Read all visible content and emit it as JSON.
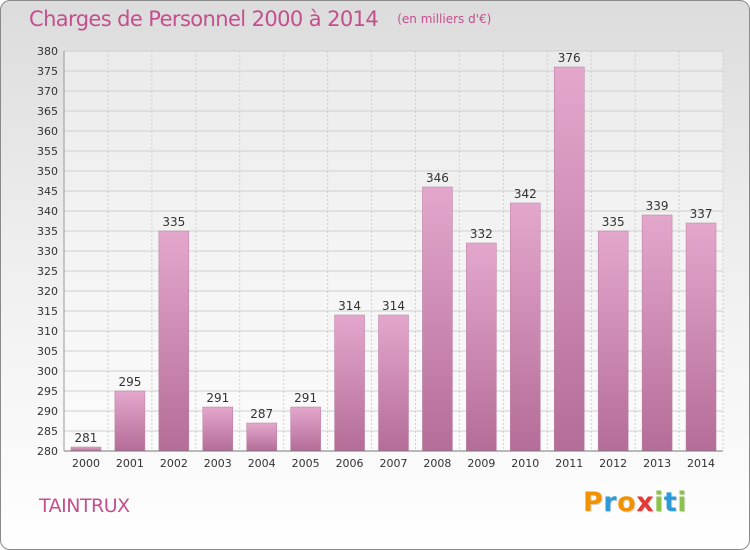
{
  "chart_data": {
    "type": "bar",
    "title": "Charges de Personnel 2000 à 2014",
    "subtitle": "(en milliers d'€)",
    "categories": [
      "2000",
      "2001",
      "2002",
      "2003",
      "2004",
      "2005",
      "2006",
      "2007",
      "2008",
      "2009",
      "2010",
      "2011",
      "2012",
      "2013",
      "2014"
    ],
    "values": [
      281,
      295,
      335,
      291,
      287,
      291,
      314,
      314,
      346,
      332,
      342,
      376,
      335,
      339,
      337
    ],
    "ylim": [
      280,
      380
    ],
    "yticks": [
      280,
      285,
      290,
      295,
      300,
      305,
      310,
      315,
      320,
      325,
      330,
      335,
      340,
      345,
      350,
      355,
      360,
      365,
      370,
      375,
      380
    ],
    "grid": true,
    "bar_color_top": "#e4a7cc",
    "bar_color_bottom": "#b46d98"
  },
  "place": "TAINTRUX",
  "logo": {
    "letters": [
      "P",
      "r",
      "o",
      "x",
      "i",
      "t",
      "i"
    ],
    "colors": [
      "#f39200",
      "#2a9bd8",
      "#f39200",
      "#e53935",
      "#8bc34a",
      "#2a9bd8",
      "#8bc34a"
    ]
  },
  "colors": {
    "title": "#c44f8e",
    "grid": "#cfcfcf",
    "axis_text": "#333333"
  }
}
